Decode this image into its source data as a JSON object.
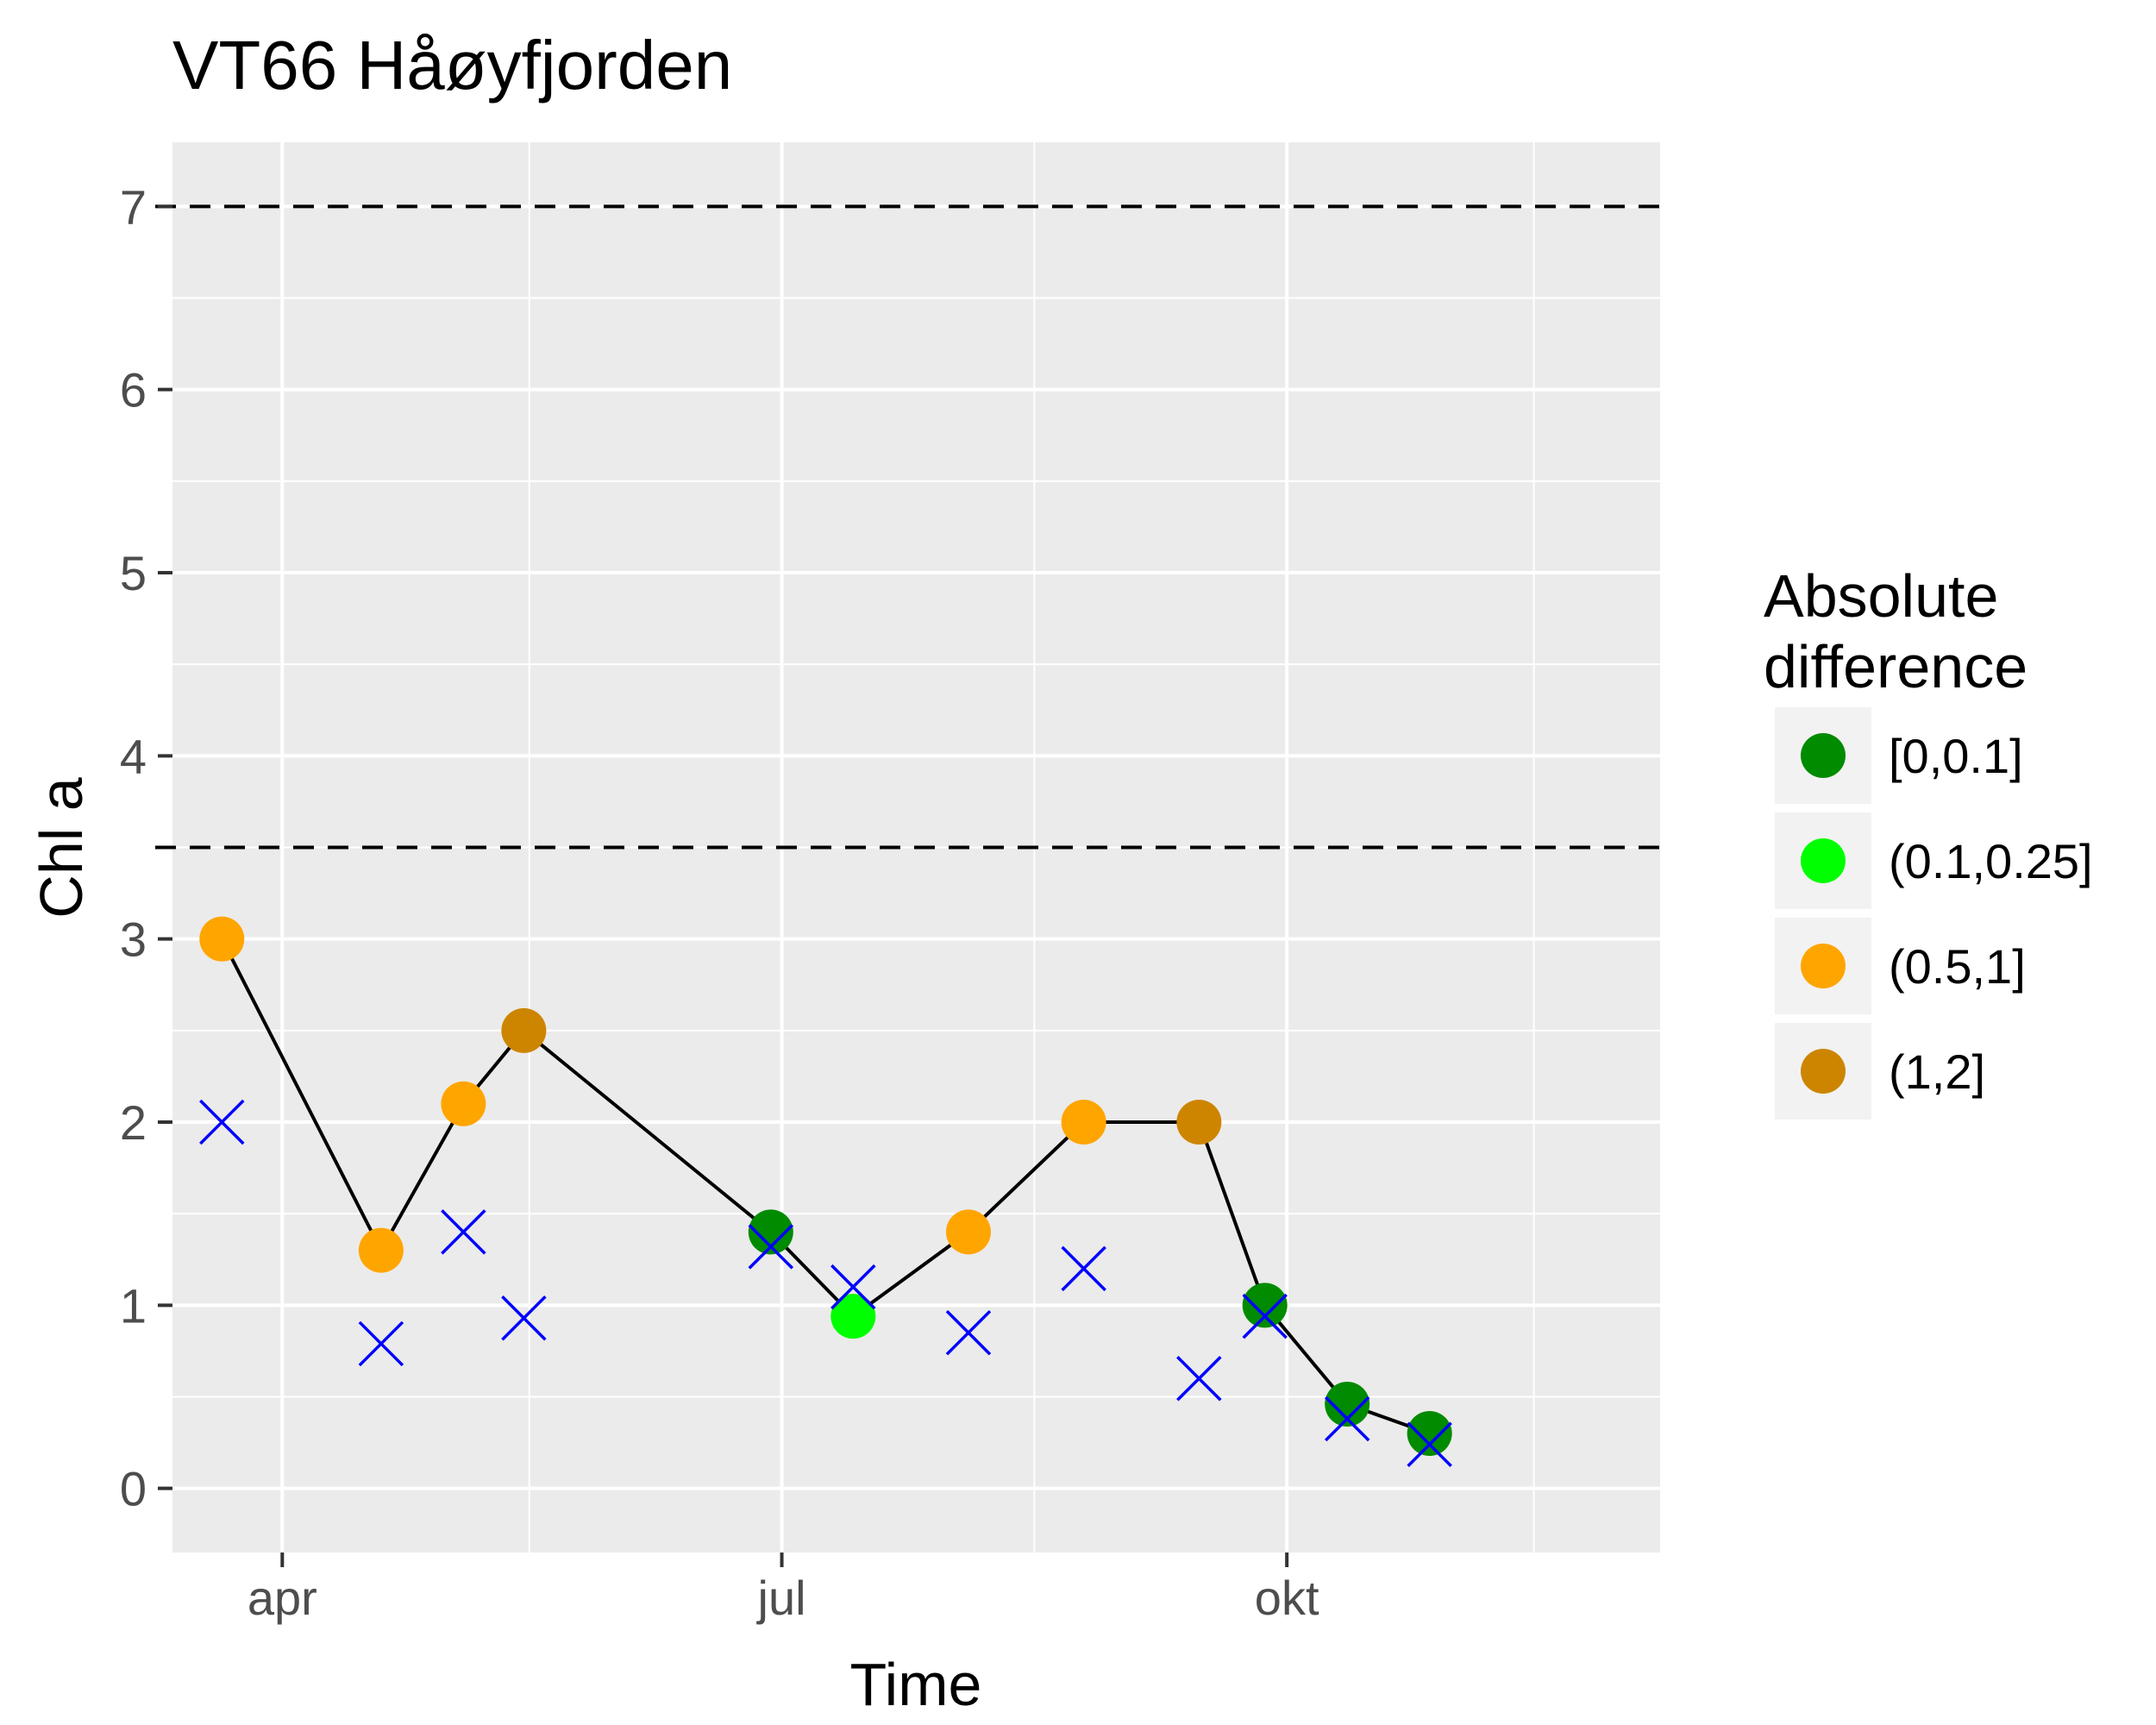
{
  "chart_data": {
    "type": "scatter",
    "title": "VT66 Håøyfjorden",
    "xlabel": "Time",
    "ylabel": "Chl a",
    "x_ticks": [
      "apr",
      "jul",
      "okt"
    ],
    "x_range": [
      "2017-03-12",
      "2017-12-08"
    ],
    "ylim": [
      -0.35,
      7.35
    ],
    "y_ticks": [
      "0",
      "1",
      "2",
      "3",
      "4",
      "5",
      "6",
      "7"
    ],
    "reference_lines": [
      {
        "y": 7,
        "style": "dashed"
      },
      {
        "y": 3.5,
        "style": "dashed"
      }
    ],
    "grid": true,
    "legend": {
      "title_lines": [
        "Absolute",
        "difference"
      ],
      "placement": "right",
      "entries": [
        {
          "label": "[0,0.1]",
          "color": "#008b00"
        },
        {
          "label": "(0.1,0.25]",
          "color": "#00ff00"
        },
        {
          "label": "(0.5,1]",
          "color": "#ffa500"
        },
        {
          "label": "(1,2]",
          "color": "#cd8500"
        }
      ]
    },
    "line_color": "#000000",
    "cross_color": "#0000ff",
    "observed": [
      {
        "date": "2017-03-21",
        "value": 3.0,
        "class": 2
      },
      {
        "date": "2017-04-19",
        "value": 1.3,
        "class": 2
      },
      {
        "date": "2017-05-04",
        "value": 2.1,
        "class": 2
      },
      {
        "date": "2017-05-15",
        "value": 2.5,
        "class": 3
      },
      {
        "date": "2017-06-29",
        "value": 1.4,
        "class": 0
      },
      {
        "date": "2017-07-14",
        "value": 0.94,
        "class": 1
      },
      {
        "date": "2017-08-04",
        "value": 1.4,
        "class": 2
      },
      {
        "date": "2017-08-25",
        "value": 2.0,
        "class": 2
      },
      {
        "date": "2017-09-15",
        "value": 2.0,
        "class": 3
      },
      {
        "date": "2017-09-27",
        "value": 1.0,
        "class": 0
      },
      {
        "date": "2017-10-12",
        "value": 0.46,
        "class": 0
      },
      {
        "date": "2017-10-27",
        "value": 0.3,
        "class": 0
      }
    ],
    "predicted": [
      {
        "date": "2017-03-21",
        "value": 2.0
      },
      {
        "date": "2017-04-19",
        "value": 0.79
      },
      {
        "date": "2017-05-04",
        "value": 1.4
      },
      {
        "date": "2017-05-15",
        "value": 0.93
      },
      {
        "date": "2017-06-29",
        "value": 1.32
      },
      {
        "date": "2017-07-14",
        "value": 1.1
      },
      {
        "date": "2017-08-04",
        "value": 0.85
      },
      {
        "date": "2017-08-25",
        "value": 1.2
      },
      {
        "date": "2017-09-15",
        "value": 0.6
      },
      {
        "date": "2017-09-27",
        "value": 0.94
      },
      {
        "date": "2017-10-12",
        "value": 0.38
      },
      {
        "date": "2017-10-27",
        "value": 0.24
      }
    ]
  }
}
